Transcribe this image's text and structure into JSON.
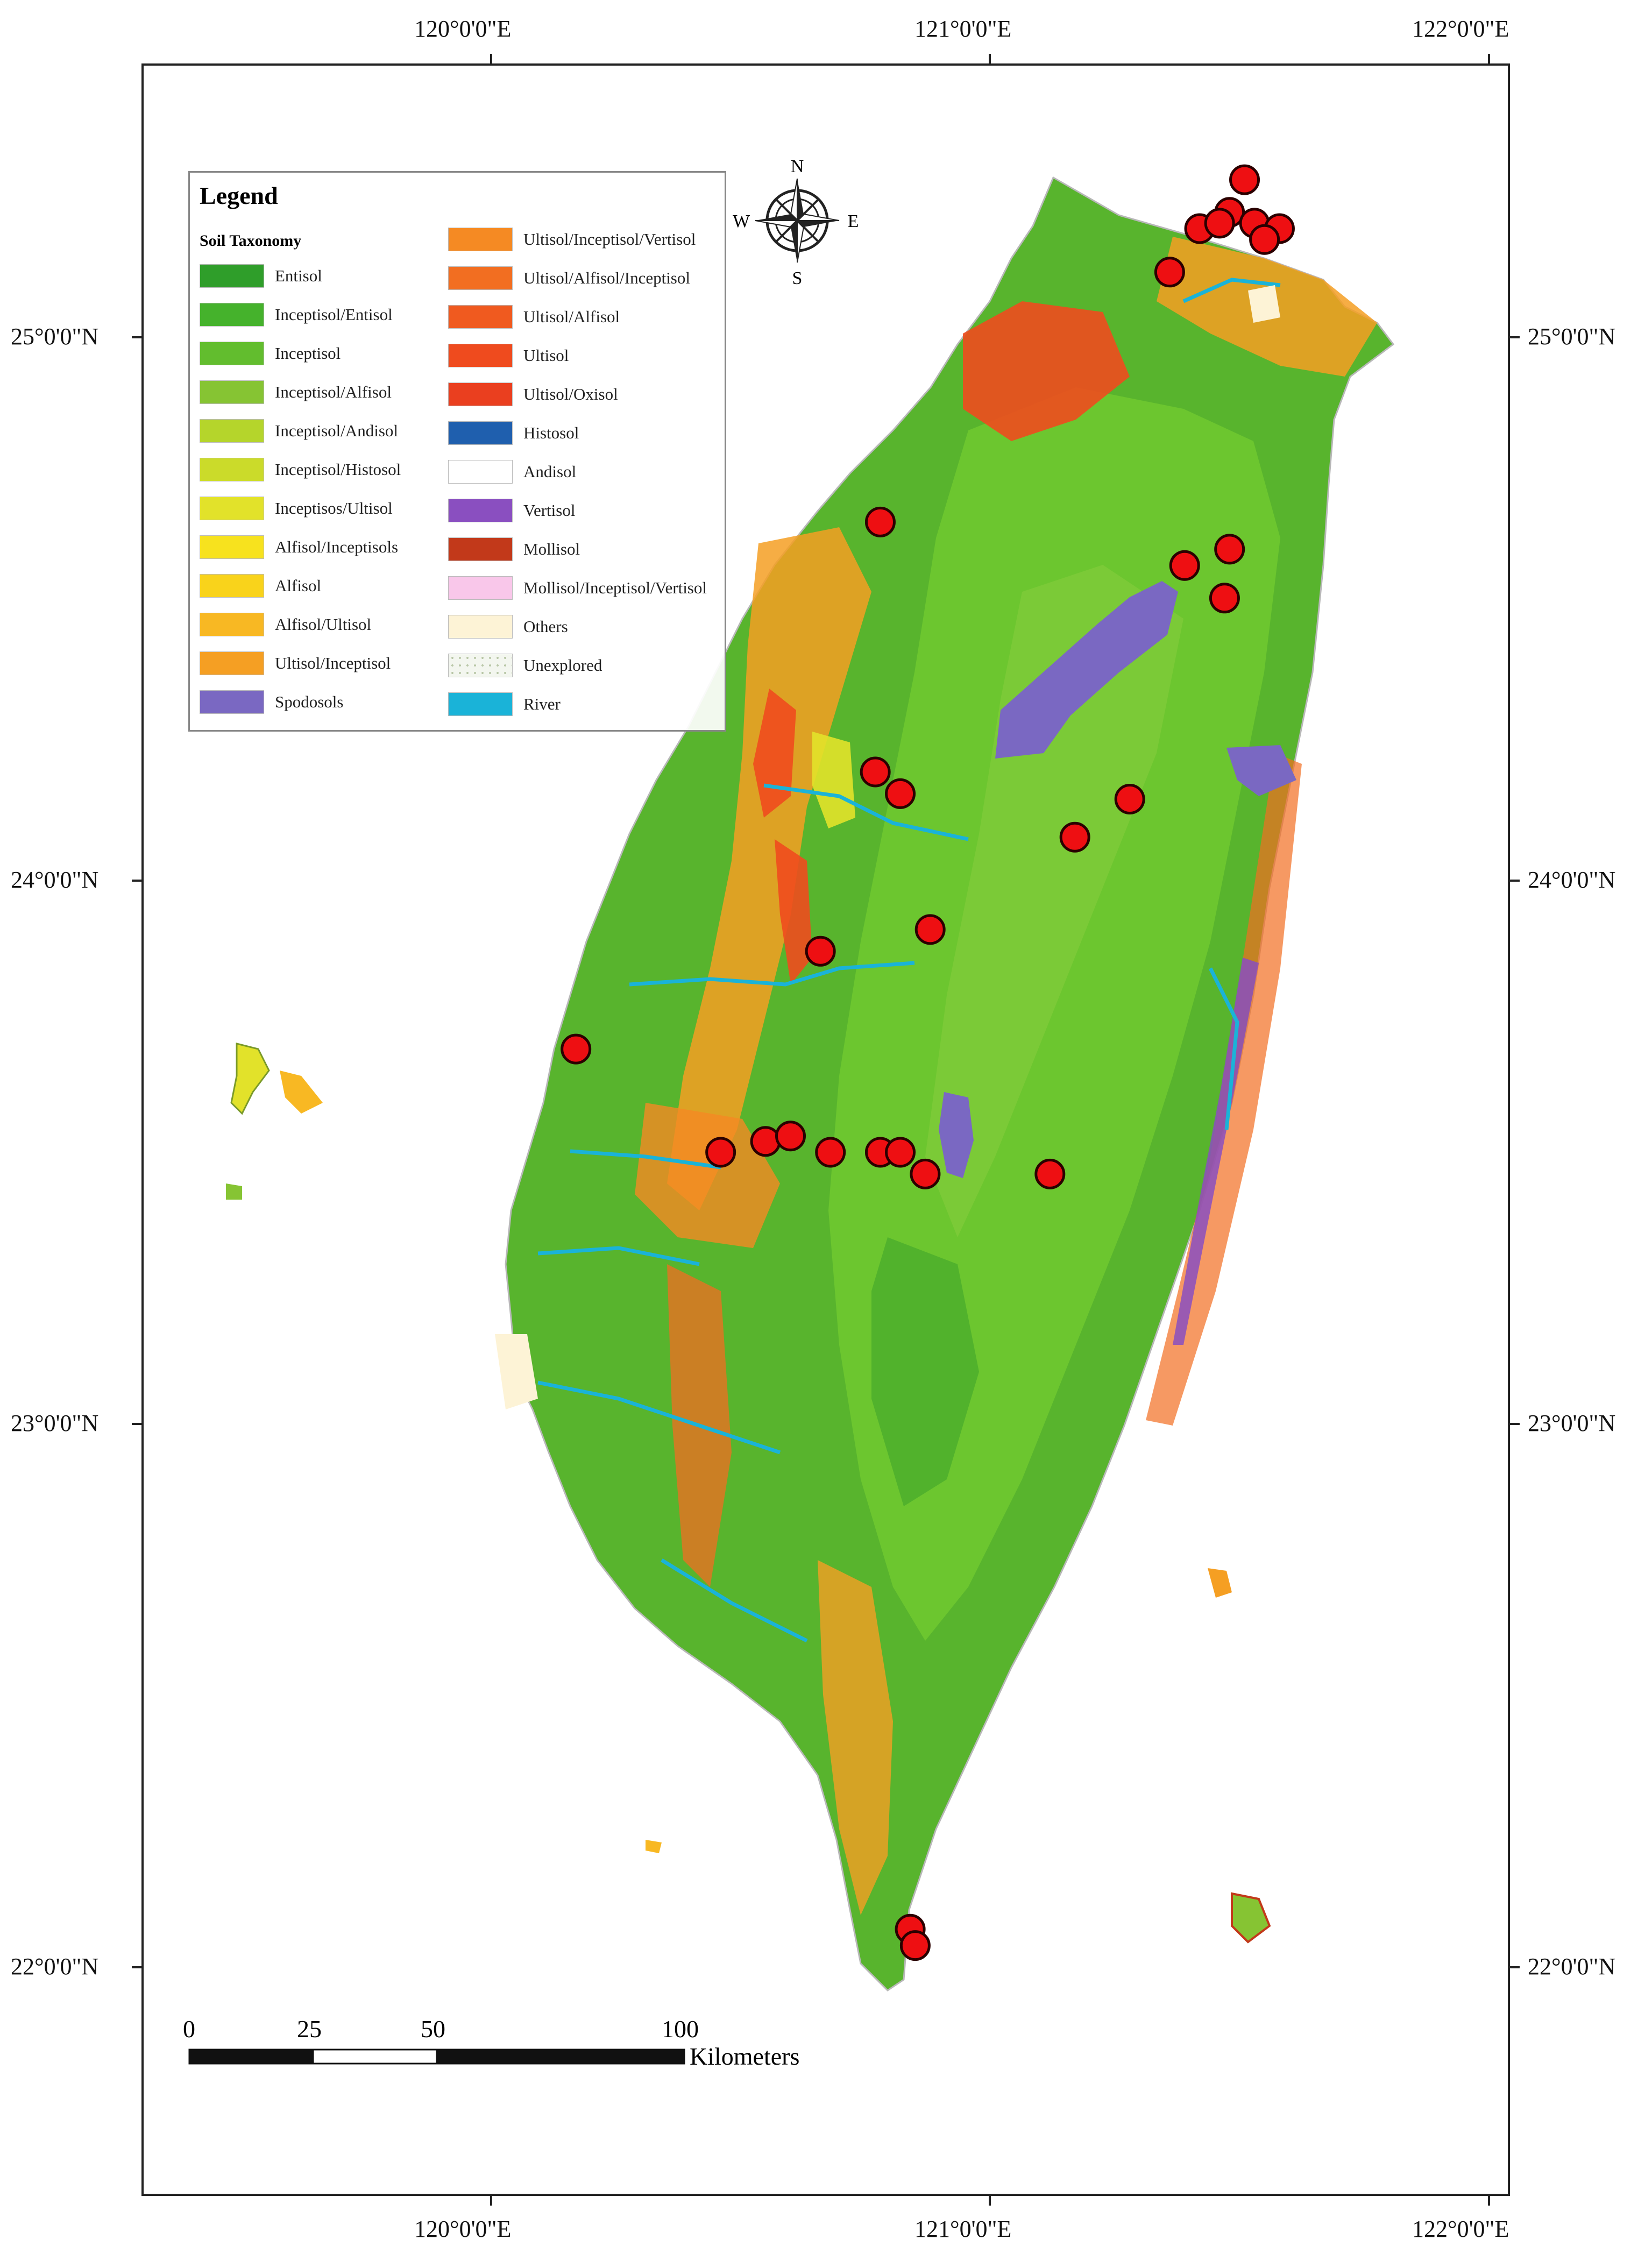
{
  "axes": {
    "top_lon": [
      "120°0'0\"E",
      "121°0'0\"E",
      "122°0'0\"E"
    ],
    "bottom_lon": [
      "120°0'0\"E",
      "121°0'0\"E",
      "122°0'0\"E"
    ],
    "left_lat": [
      "25°0'0\"N",
      "24°0'0\"N",
      "23°0'0\"N",
      "22°0'0\"N"
    ],
    "right_lat": [
      "25°0'0\"N",
      "24°0'0\"N",
      "23°0'0\"N",
      "22°0'0\"N"
    ]
  },
  "legend": {
    "title": "Legend",
    "subtitle": "Soil Taxonomy",
    "items": [
      {
        "label": "Entisol",
        "color": "#2f9e2a"
      },
      {
        "label": "Inceptisol/Entisol",
        "color": "#45b22c"
      },
      {
        "label": "Inceptisol",
        "color": "#62bd2e"
      },
      {
        "label": "Inceptisol/Alfisol",
        "color": "#86c433"
      },
      {
        "label": "Inceptisol/Andisol",
        "color": "#b5d52b"
      },
      {
        "label": "Inceptisol/Histosol",
        "color": "#cbdb2a"
      },
      {
        "label": "Inceptisos/Ultisol",
        "color": "#e2e22a"
      },
      {
        "label": "Alfisol/Inceptisols",
        "color": "#f7e21e"
      },
      {
        "label": "Alfisol",
        "color": "#f9d31b"
      },
      {
        "label": "Alfisol/Ultisol",
        "color": "#f8b823"
      },
      {
        "label": "Ultisol/Inceptisol",
        "color": "#f59f23"
      },
      {
        "label": "Spodosols",
        "color": "#7a68c2"
      },
      {
        "label": "Ultisol/Inceptisol/Vertisol",
        "color": "#f58a23"
      },
      {
        "label": "Ultisol/Alfisol/Inceptisol",
        "color": "#f26e21"
      },
      {
        "label": "Ultisol/Alfisol",
        "color": "#f05a1f"
      },
      {
        "label": "Ultisol",
        "color": "#ef4b1e"
      },
      {
        "label": "Ultisol/Oxisol",
        "color": "#ea3f1f"
      },
      {
        "label": "Histosol",
        "color": "#1f5fae"
      },
      {
        "label": "Andisol",
        "color": "#ffffff"
      },
      {
        "label": "Vertisol",
        "color": "#8a4fc0"
      },
      {
        "label": "Mollisol",
        "color": "#c2391a"
      },
      {
        "label": "Mollisol/Inceptisol/Vertisol",
        "color": "#f9c7ea"
      },
      {
        "label": "Others",
        "color": "#fdf3d6"
      },
      {
        "label": "Unexplored",
        "color": "#f3f6ef"
      },
      {
        "label": "River",
        "color": "#1ab3d8"
      }
    ]
  },
  "compass": {
    "n": "N",
    "s": "S",
    "e": "E",
    "w": "W"
  },
  "scale_bar": {
    "ticks": [
      "0",
      "25",
      "50",
      "100"
    ],
    "unit": "Kilometers"
  },
  "sample_points": [
    {
      "lon": 121.51,
      "lat": 25.29
    },
    {
      "lon": 121.48,
      "lat": 25.23
    },
    {
      "lon": 121.53,
      "lat": 25.21
    },
    {
      "lon": 121.42,
      "lat": 25.2
    },
    {
      "lon": 121.46,
      "lat": 25.21
    },
    {
      "lon": 121.58,
      "lat": 25.2
    },
    {
      "lon": 121.55,
      "lat": 25.18
    },
    {
      "lon": 121.36,
      "lat": 25.12
    },
    {
      "lon": 120.78,
      "lat": 24.66
    },
    {
      "lon": 121.48,
      "lat": 24.61
    },
    {
      "lon": 121.39,
      "lat": 24.58
    },
    {
      "lon": 121.47,
      "lat": 24.52
    },
    {
      "lon": 120.77,
      "lat": 24.2
    },
    {
      "lon": 120.82,
      "lat": 24.16
    },
    {
      "lon": 121.28,
      "lat": 24.15
    },
    {
      "lon": 121.17,
      "lat": 24.08
    },
    {
      "lon": 120.88,
      "lat": 23.91
    },
    {
      "lon": 120.66,
      "lat": 23.87
    },
    {
      "lon": 120.17,
      "lat": 23.69
    },
    {
      "lon": 120.46,
      "lat": 23.5
    },
    {
      "lon": 120.55,
      "lat": 23.52
    },
    {
      "lon": 120.6,
      "lat": 23.53
    },
    {
      "lon": 120.68,
      "lat": 23.5
    },
    {
      "lon": 120.78,
      "lat": 23.5
    },
    {
      "lon": 120.82,
      "lat": 23.5
    },
    {
      "lon": 120.87,
      "lat": 23.46
    },
    {
      "lon": 121.12,
      "lat": 23.46
    },
    {
      "lon": 120.84,
      "lat": 22.07
    },
    {
      "lon": 120.85,
      "lat": 22.04
    }
  ]
}
